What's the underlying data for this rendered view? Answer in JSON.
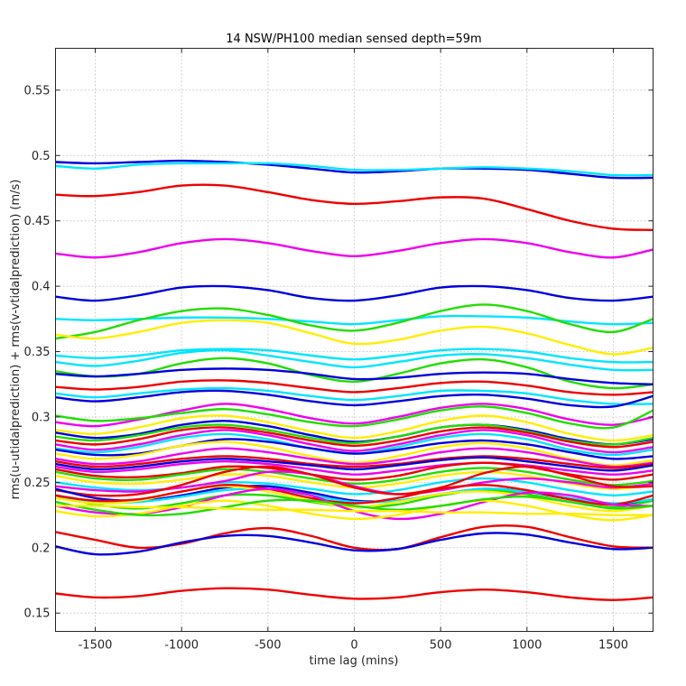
{
  "chart_data": {
    "type": "line",
    "title": "14 NSW/PH100 median sensed depth=59m",
    "xlabel": "time lag (mins)",
    "ylabel": "rms(u-utidalprediction) + rms(v-vtidalprediction) (m/s)",
    "xlim": [
      -1730,
      1730
    ],
    "ylim": [
      0.136,
      0.582
    ],
    "xticks": [
      -1500,
      -1000,
      -500,
      0,
      500,
      1000,
      1500
    ],
    "xtick_labels": [
      "-1500",
      "-1000",
      "-500",
      "0",
      "500",
      "1000",
      "1500"
    ],
    "yticks": [
      0.15,
      0.2,
      0.25,
      0.3,
      0.35,
      0.4,
      0.45,
      0.5,
      0.55
    ],
    "ytick_labels": [
      "0.15",
      "0.2",
      "0.25",
      "0.3",
      "0.35",
      "0.4",
      "0.45",
      "0.5",
      "0.55"
    ],
    "grid": true,
    "x": [
      -1730,
      -1500,
      -1250,
      -1000,
      -750,
      -500,
      -250,
      0,
      250,
      500,
      750,
      1000,
      1250,
      1500,
      1730
    ],
    "series": [
      {
        "name": "blue-1",
        "color": "#0000dd",
        "values": [
          0.495,
          0.494,
          0.495,
          0.496,
          0.495,
          0.493,
          0.49,
          0.487,
          0.488,
          0.49,
          0.49,
          0.489,
          0.486,
          0.483,
          0.483
        ]
      },
      {
        "name": "cyan-1",
        "color": "#00e5ff",
        "values": [
          0.492,
          0.49,
          0.493,
          0.494,
          0.494,
          0.494,
          0.492,
          0.489,
          0.489,
          0.49,
          0.491,
          0.49,
          0.488,
          0.485,
          0.485
        ]
      },
      {
        "name": "red-1",
        "color": "#ee0000",
        "values": [
          0.47,
          0.469,
          0.472,
          0.477,
          0.477,
          0.472,
          0.466,
          0.463,
          0.465,
          0.468,
          0.467,
          0.459,
          0.45,
          0.444,
          0.443
        ]
      },
      {
        "name": "magenta-1",
        "color": "#ee00ee",
        "values": [
          0.425,
          0.422,
          0.426,
          0.433,
          0.436,
          0.433,
          0.427,
          0.423,
          0.427,
          0.433,
          0.436,
          0.433,
          0.426,
          0.422,
          0.428
        ]
      },
      {
        "name": "blue-2",
        "color": "#0000dd",
        "values": [
          0.392,
          0.389,
          0.393,
          0.399,
          0.4,
          0.397,
          0.391,
          0.389,
          0.393,
          0.399,
          0.4,
          0.397,
          0.391,
          0.389,
          0.392
        ]
      },
      {
        "name": "cyan-2",
        "color": "#00e5ff",
        "values": [
          0.375,
          0.374,
          0.375,
          0.376,
          0.376,
          0.375,
          0.373,
          0.371,
          0.374,
          0.377,
          0.377,
          0.376,
          0.373,
          0.371,
          0.372
        ]
      },
      {
        "name": "green-1",
        "color": "#22dd00",
        "values": [
          0.36,
          0.365,
          0.374,
          0.381,
          0.383,
          0.378,
          0.37,
          0.366,
          0.372,
          0.381,
          0.386,
          0.381,
          0.371,
          0.365,
          0.375
        ]
      },
      {
        "name": "yellow-1",
        "color": "#ffee00",
        "values": [
          0.363,
          0.36,
          0.365,
          0.372,
          0.374,
          0.372,
          0.364,
          0.356,
          0.359,
          0.366,
          0.369,
          0.364,
          0.355,
          0.348,
          0.353
        ]
      },
      {
        "name": "cyan-3",
        "color": "#00e5ff",
        "values": [
          0.347,
          0.345,
          0.347,
          0.351,
          0.352,
          0.351,
          0.347,
          0.344,
          0.347,
          0.351,
          0.352,
          0.35,
          0.345,
          0.342,
          0.342
        ]
      },
      {
        "name": "cyan-4",
        "color": "#00e5ff",
        "values": [
          0.342,
          0.339,
          0.343,
          0.349,
          0.351,
          0.347,
          0.342,
          0.338,
          0.342,
          0.347,
          0.348,
          0.345,
          0.34,
          0.336,
          0.336
        ]
      },
      {
        "name": "green-2",
        "color": "#22dd00",
        "values": [
          0.335,
          0.331,
          0.333,
          0.341,
          0.345,
          0.341,
          0.332,
          0.327,
          0.333,
          0.341,
          0.344,
          0.338,
          0.327,
          0.322,
          0.325
        ]
      },
      {
        "name": "blue-3",
        "color": "#0000dd",
        "values": [
          0.333,
          0.331,
          0.333,
          0.336,
          0.337,
          0.336,
          0.333,
          0.329,
          0.33,
          0.333,
          0.334,
          0.333,
          0.329,
          0.326,
          0.325
        ]
      },
      {
        "name": "red-2",
        "color": "#ee0000",
        "values": [
          0.323,
          0.321,
          0.323,
          0.327,
          0.328,
          0.326,
          0.322,
          0.319,
          0.322,
          0.326,
          0.327,
          0.324,
          0.319,
          0.317,
          0.319
        ]
      },
      {
        "name": "cyan-5",
        "color": "#00e5ff",
        "values": [
          0.318,
          0.315,
          0.318,
          0.321,
          0.322,
          0.32,
          0.316,
          0.313,
          0.316,
          0.32,
          0.32,
          0.318,
          0.313,
          0.31,
          0.31
        ]
      },
      {
        "name": "blue-4",
        "color": "#0000dd",
        "values": [
          0.315,
          0.312,
          0.315,
          0.319,
          0.32,
          0.317,
          0.312,
          0.309,
          0.312,
          0.316,
          0.317,
          0.314,
          0.309,
          0.308,
          0.316
        ]
      },
      {
        "name": "magenta-2",
        "color": "#ee00ee",
        "values": [
          0.296,
          0.293,
          0.298,
          0.305,
          0.31,
          0.306,
          0.299,
          0.295,
          0.3,
          0.307,
          0.31,
          0.306,
          0.298,
          0.294,
          0.3
        ]
      },
      {
        "name": "green-3",
        "color": "#22dd00",
        "values": [
          0.301,
          0.297,
          0.299,
          0.303,
          0.306,
          0.302,
          0.296,
          0.293,
          0.298,
          0.305,
          0.308,
          0.303,
          0.295,
          0.292,
          0.305
        ]
      },
      {
        "name": "yellow-2",
        "color": "#ffee00",
        "values": [
          0.29,
          0.287,
          0.292,
          0.299,
          0.301,
          0.296,
          0.289,
          0.284,
          0.289,
          0.297,
          0.301,
          0.296,
          0.287,
          0.282,
          0.286
        ]
      },
      {
        "name": "blue-5",
        "color": "#0000dd",
        "values": [
          0.288,
          0.284,
          0.287,
          0.294,
          0.297,
          0.293,
          0.286,
          0.281,
          0.285,
          0.292,
          0.294,
          0.29,
          0.283,
          0.279,
          0.283
        ]
      },
      {
        "name": "green-4",
        "color": "#22dd00",
        "values": [
          0.285,
          0.282,
          0.286,
          0.292,
          0.294,
          0.29,
          0.284,
          0.28,
          0.285,
          0.292,
          0.294,
          0.289,
          0.282,
          0.279,
          0.284
        ]
      },
      {
        "name": "red-3",
        "color": "#ee0000",
        "values": [
          0.282,
          0.279,
          0.283,
          0.29,
          0.292,
          0.288,
          0.282,
          0.278,
          0.282,
          0.289,
          0.292,
          0.288,
          0.281,
          0.277,
          0.281
        ]
      },
      {
        "name": "magenta-3",
        "color": "#ee00ee",
        "values": [
          0.279,
          0.275,
          0.279,
          0.286,
          0.29,
          0.286,
          0.279,
          0.274,
          0.279,
          0.286,
          0.29,
          0.286,
          0.278,
          0.273,
          0.277
        ]
      },
      {
        "name": "cyan-6",
        "color": "#00e5ff",
        "values": [
          0.276,
          0.273,
          0.277,
          0.284,
          0.287,
          0.283,
          0.276,
          0.272,
          0.277,
          0.284,
          0.287,
          0.283,
          0.275,
          0.271,
          0.275
        ]
      },
      {
        "name": "blue-6",
        "color": "#0000dd",
        "values": [
          0.275,
          0.271,
          0.272,
          0.278,
          0.283,
          0.281,
          0.276,
          0.272,
          0.275,
          0.28,
          0.282,
          0.279,
          0.273,
          0.268,
          0.27
        ]
      },
      {
        "name": "yellow-3",
        "color": "#ffee00",
        "values": [
          0.272,
          0.268,
          0.271,
          0.278,
          0.281,
          0.277,
          0.27,
          0.265,
          0.27,
          0.277,
          0.28,
          0.276,
          0.268,
          0.263,
          0.267
        ]
      },
      {
        "name": "magenta-4",
        "color": "#ee00ee",
        "values": [
          0.268,
          0.264,
          0.266,
          0.272,
          0.276,
          0.273,
          0.268,
          0.264,
          0.267,
          0.273,
          0.276,
          0.273,
          0.267,
          0.262,
          0.265
        ]
      },
      {
        "name": "red-4",
        "color": "#ee0000",
        "values": [
          0.266,
          0.262,
          0.264,
          0.268,
          0.27,
          0.268,
          0.264,
          0.262,
          0.264,
          0.268,
          0.27,
          0.268,
          0.264,
          0.261,
          0.264
        ]
      },
      {
        "name": "blue-7",
        "color": "#0000dd",
        "values": [
          0.264,
          0.26,
          0.262,
          0.266,
          0.268,
          0.266,
          0.263,
          0.26,
          0.263,
          0.267,
          0.269,
          0.266,
          0.262,
          0.259,
          0.263
        ]
      },
      {
        "name": "magenta-5",
        "color": "#ee00ee",
        "values": [
          0.262,
          0.258,
          0.26,
          0.264,
          0.266,
          0.264,
          0.26,
          0.256,
          0.259,
          0.263,
          0.265,
          0.263,
          0.259,
          0.256,
          0.259
        ]
      },
      {
        "name": "red-5",
        "color": "#ee0000",
        "values": [
          0.26,
          0.255,
          0.254,
          0.257,
          0.262,
          0.261,
          0.256,
          0.252,
          0.255,
          0.262,
          0.265,
          0.262,
          0.256,
          0.252,
          0.256
        ]
      },
      {
        "name": "green-5",
        "color": "#22dd00",
        "values": [
          0.258,
          0.253,
          0.252,
          0.256,
          0.26,
          0.258,
          0.253,
          0.249,
          0.252,
          0.258,
          0.261,
          0.258,
          0.252,
          0.248,
          0.251
        ]
      },
      {
        "name": "yellow-4",
        "color": "#ffee00",
        "values": [
          0.255,
          0.25,
          0.249,
          0.252,
          0.256,
          0.255,
          0.25,
          0.246,
          0.249,
          0.255,
          0.258,
          0.255,
          0.249,
          0.245,
          0.248
        ]
      },
      {
        "name": "cyan-7",
        "color": "#00e5ff",
        "values": [
          0.25,
          0.246,
          0.244,
          0.246,
          0.25,
          0.249,
          0.245,
          0.241,
          0.244,
          0.25,
          0.253,
          0.25,
          0.244,
          0.24,
          0.243
        ]
      },
      {
        "name": "magenta-6",
        "color": "#ee00ee",
        "values": [
          0.247,
          0.244,
          0.243,
          0.246,
          0.251,
          0.258,
          0.256,
          0.247,
          0.241,
          0.244,
          0.25,
          0.253,
          0.25,
          0.246,
          0.249
        ]
      },
      {
        "name": "red-6",
        "color": "#ee0000",
        "values": [
          0.244,
          0.24,
          0.241,
          0.248,
          0.258,
          0.262,
          0.256,
          0.246,
          0.241,
          0.246,
          0.257,
          0.262,
          0.255,
          0.247,
          0.247
        ]
      },
      {
        "name": "blue-8",
        "color": "#0000dd",
        "values": [
          0.245,
          0.238,
          0.236,
          0.24,
          0.246,
          0.247,
          0.242,
          0.236,
          0.236,
          0.241,
          0.245,
          0.243,
          0.237,
          0.233,
          0.237
        ]
      },
      {
        "name": "green-6",
        "color": "#22dd00",
        "values": [
          0.24,
          0.233,
          0.23,
          0.234,
          0.24,
          0.24,
          0.235,
          0.231,
          0.233,
          0.24,
          0.244,
          0.241,
          0.235,
          0.231,
          0.236
        ]
      },
      {
        "name": "cyan-8",
        "color": "#00e5ff",
        "values": [
          0.24,
          0.235,
          0.235,
          0.239,
          0.244,
          0.245,
          0.24,
          0.235,
          0.236,
          0.241,
          0.245,
          0.243,
          0.238,
          0.234,
          0.237
        ]
      },
      {
        "name": "yellow-5",
        "color": "#ffee00",
        "values": [
          0.238,
          0.234,
          0.236,
          0.243,
          0.247,
          0.243,
          0.236,
          0.231,
          0.235,
          0.241,
          0.243,
          0.239,
          0.232,
          0.228,
          0.232
        ]
      },
      {
        "name": "red-7",
        "color": "#ee0000",
        "values": [
          0.24,
          0.236,
          0.237,
          0.243,
          0.248,
          0.245,
          0.238,
          0.234,
          0.238,
          0.245,
          0.248,
          0.244,
          0.237,
          0.233,
          0.24
        ]
      },
      {
        "name": "magenta-7",
        "color": "#ee00ee",
        "values": [
          0.232,
          0.227,
          0.226,
          0.231,
          0.24,
          0.245,
          0.24,
          0.228,
          0.222,
          0.226,
          0.235,
          0.242,
          0.24,
          0.233,
          0.232
        ]
      },
      {
        "name": "yellow-6",
        "color": "#ffee00",
        "values": [
          0.228,
          0.224,
          0.226,
          0.232,
          0.236,
          0.232,
          0.226,
          0.222,
          0.225,
          0.232,
          0.236,
          0.232,
          0.225,
          0.221,
          0.225
        ]
      },
      {
        "name": "green-7",
        "color": "#22dd00",
        "values": [
          0.235,
          0.229,
          0.225,
          0.226,
          0.231,
          0.236,
          0.236,
          0.232,
          0.229,
          0.232,
          0.237,
          0.239,
          0.235,
          0.23,
          0.232
        ]
      },
      {
        "name": "yellow-7",
        "color": "#ffee00",
        "values": [
          0.232,
          0.232,
          0.231,
          0.231,
          0.23,
          0.229,
          0.229,
          0.228,
          0.228,
          0.227,
          0.227,
          0.226,
          0.226,
          0.225,
          0.225
        ]
      },
      {
        "name": "red-8",
        "color": "#ee0000",
        "values": [
          0.212,
          0.206,
          0.2,
          0.203,
          0.211,
          0.215,
          0.209,
          0.2,
          0.199,
          0.208,
          0.216,
          0.216,
          0.208,
          0.201,
          0.2
        ]
      },
      {
        "name": "blue-9",
        "color": "#0000dd",
        "values": [
          0.201,
          0.195,
          0.197,
          0.204,
          0.209,
          0.209,
          0.204,
          0.198,
          0.199,
          0.206,
          0.211,
          0.21,
          0.204,
          0.199,
          0.2
        ]
      },
      {
        "name": "red-9",
        "color": "#ee0000",
        "values": [
          0.165,
          0.162,
          0.163,
          0.167,
          0.169,
          0.168,
          0.164,
          0.161,
          0.162,
          0.166,
          0.168,
          0.166,
          0.162,
          0.16,
          0.162
        ]
      }
    ]
  }
}
